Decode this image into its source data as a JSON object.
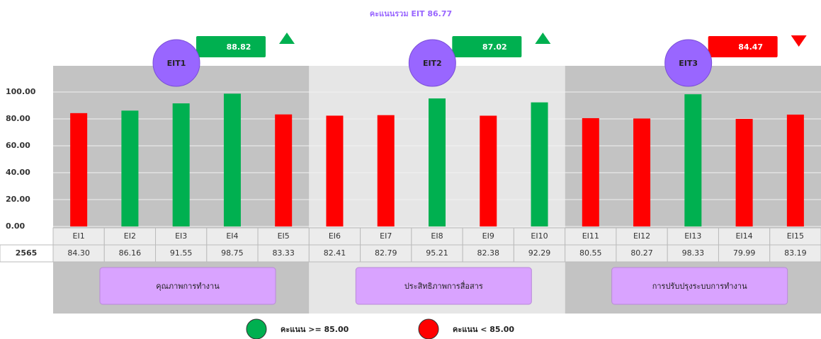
{
  "chart_data": {
    "type": "bar",
    "title": "คะแนนรวม EIT 86.77",
    "categories": [
      "EI1",
      "EI2",
      "EI3",
      "EI4",
      "EI5",
      "EI6",
      "EI7",
      "EI8",
      "EI9",
      "EI10",
      "EI11",
      "EI12",
      "EI13",
      "EI14",
      "EI15"
    ],
    "row_label": "2565",
    "values": [
      84.3,
      86.16,
      91.55,
      98.75,
      83.33,
      82.41,
      82.79,
      95.21,
      82.38,
      92.29,
      80.55,
      80.27,
      98.33,
      79.99,
      83.19
    ],
    "value_labels": [
      "84.30",
      "86.16",
      "91.55",
      "98.75",
      "83.33",
      "82.41",
      "82.79",
      "95.21",
      "82.38",
      "92.29",
      "80.55",
      "80.27",
      "98.33",
      "79.99",
      "83.19"
    ],
    "colors": [
      "#ff0000",
      "#00b050",
      "#00b050",
      "#00b050",
      "#ff0000",
      "#ff0000",
      "#ff0000",
      "#00b050",
      "#ff0000",
      "#00b050",
      "#ff0000",
      "#ff0000",
      "#00b050",
      "#ff0000",
      "#ff0000"
    ],
    "ylim": [
      0,
      100
    ],
    "yticks": [
      {
        "value": 0,
        "label": "0.00"
      },
      {
        "value": 20,
        "label": "20.00"
      },
      {
        "value": 40,
        "label": "40.00"
      },
      {
        "value": 60,
        "label": "60.00"
      },
      {
        "value": 80,
        "label": "80.00"
      },
      {
        "value": 100,
        "label": "100.00"
      }
    ],
    "grid": true,
    "groups": [
      {
        "name": "EIT1",
        "score": 88.82,
        "trend": "up",
        "color": "#00b050",
        "label": "คุณภาพการทำงาน",
        "background": "#c3c3c3"
      },
      {
        "name": "EIT2",
        "score": 87.02,
        "trend": "up",
        "color": "#00b050",
        "label": "ประสิทธิภาพการสื่อสาร",
        "background": "#e6e6e6"
      },
      {
        "name": "EIT3",
        "score": 84.47,
        "trend": "down",
        "color": "#ff0000",
        "label": "การปรับปรุงระบบการทำงาน",
        "background": "#c3c3c3"
      }
    ],
    "legend": [
      {
        "label": "คะแนน >= 85.00",
        "color": "#00b050"
      },
      {
        "label": "คะแนน < 85.00",
        "color": "#ff0000"
      }
    ]
  }
}
